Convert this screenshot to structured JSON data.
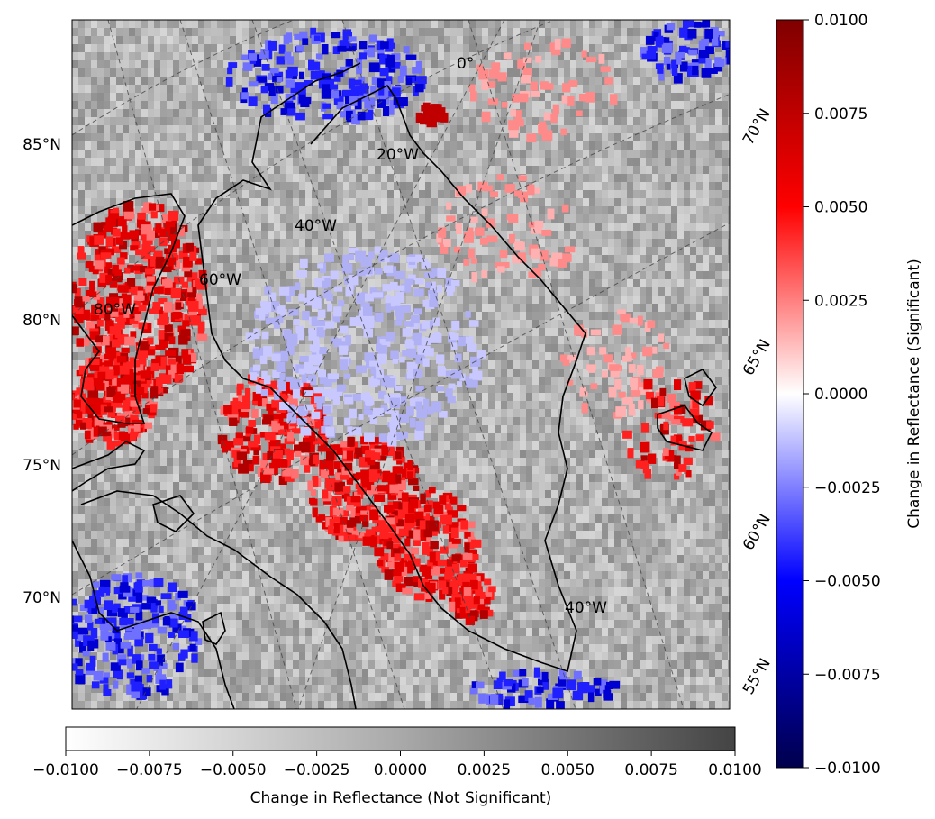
{
  "map": {
    "projection": "polar-stereographic",
    "region": "Greenland and Canadian Arctic Archipelago",
    "lat_labels": [
      "85°N",
      "80°N",
      "75°N",
      "70°N"
    ],
    "lon_labels_inner": [
      "0°",
      "20°W",
      "40°W",
      "60°W",
      "80°W"
    ],
    "lon_label_lower": "40°W",
    "lat_labels_right": [
      "70°N",
      "65°N",
      "60°N",
      "55°N"
    ]
  },
  "colorbar_significant": {
    "label": "Change in Reflectance (Significant)",
    "colormap": "seismic",
    "range": [
      -0.01,
      0.01
    ],
    "ticks": [
      "0.0100",
      "0.0075",
      "0.0050",
      "0.0025",
      "0.0000",
      "−0.0025",
      "−0.0050",
      "−0.0075",
      "−0.0100"
    ],
    "colors": {
      "high": "#7f0000",
      "mid": "#ffffff",
      "low": "#00004c"
    }
  },
  "colorbar_not_significant": {
    "label": "Change in Reflectance (Not Significant)",
    "colormap": "greys",
    "range": [
      -0.01,
      0.01
    ],
    "ticks": [
      "−0.0100",
      "−0.0075",
      "−0.0050",
      "−0.0025",
      "0.0000",
      "0.0025",
      "0.0050",
      "0.0075",
      "0.0100"
    ]
  }
}
